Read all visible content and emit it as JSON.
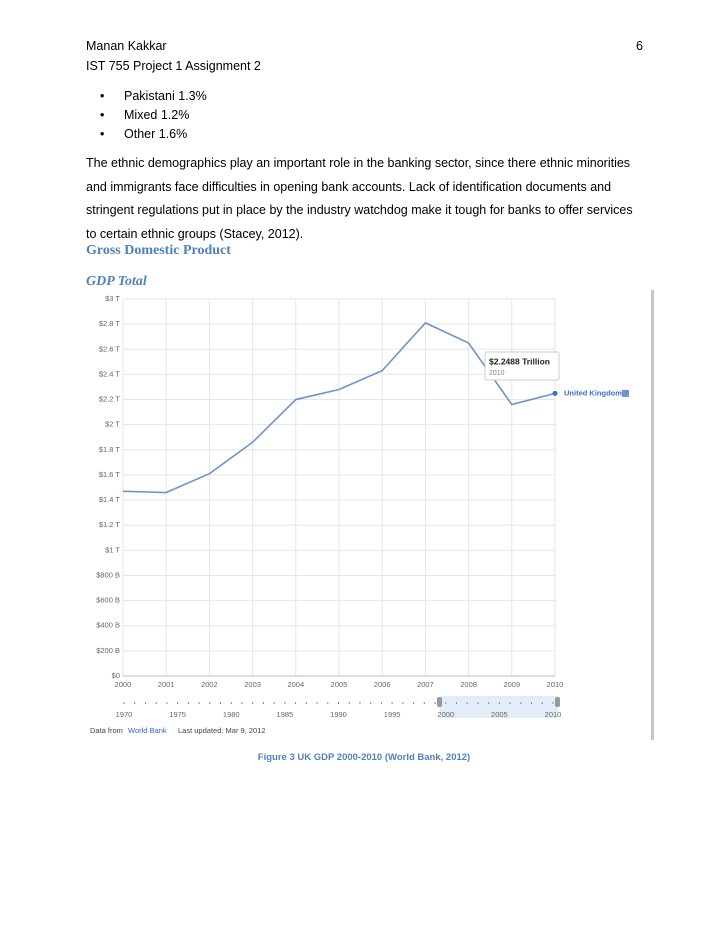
{
  "header": {
    "author": "Manan Kakkar",
    "page_number": "6",
    "course": "IST 755 Project 1 Assignment 2"
  },
  "bullets": [
    "Pakistani 1.3%",
    "Mixed 1.2%",
    "Other 1.6%"
  ],
  "paragraph": "The ethnic demographics play an important role in the banking sector, since there ethnic minorities and immigrants face difficulties in opening bank accounts. Lack of identification documents and stringent regulations put in place by the industry watchdog make it tough for banks to offer services to certain ethnic groups (Stacey, 2012).",
  "heading": "Gross Domestic Product",
  "subheading": "GDP Total",
  "chart_data": {
    "type": "line",
    "x": [
      2000,
      2001,
      2002,
      2003,
      2004,
      2005,
      2006,
      2007,
      2008,
      2009,
      2010
    ],
    "series": [
      {
        "name": "United Kingdom",
        "color": "#6f93cc",
        "values": [
          1.47,
          1.46,
          1.61,
          1.86,
          2.2,
          2.28,
          2.43,
          2.81,
          2.65,
          2.16,
          2.2488
        ]
      }
    ],
    "xlim": [
      2000,
      2010
    ],
    "xticks": [
      2000,
      2001,
      2002,
      2003,
      2004,
      2005,
      2006,
      2007,
      2008,
      2009,
      2010
    ],
    "ylim": [
      0,
      3
    ],
    "yticks": [
      {
        "value": 0,
        "label": "$0"
      },
      {
        "value": 0.2,
        "label": "$200 B"
      },
      {
        "value": 0.4,
        "label": "$400 B"
      },
      {
        "value": 0.6,
        "label": "$600 B"
      },
      {
        "value": 0.8,
        "label": "$800 B"
      },
      {
        "value": 1,
        "label": "$1 T"
      },
      {
        "value": 1.2,
        "label": "$1.2 T"
      },
      {
        "value": 1.4,
        "label": "$1.4 T"
      },
      {
        "value": 1.6,
        "label": "$1.6 T"
      },
      {
        "value": 1.8,
        "label": "$1.8 T"
      },
      {
        "value": 2,
        "label": "$2 T"
      },
      {
        "value": 2.2,
        "label": "$2.2 T"
      },
      {
        "value": 2.4,
        "label": "$2.4 T"
      },
      {
        "value": 2.6,
        "label": "$2.6 T"
      },
      {
        "value": 2.8,
        "label": "$2.8 T"
      },
      {
        "value": 3,
        "label": "$3 T"
      }
    ],
    "grid": true,
    "tooltip": {
      "label": "$2.2488 Trillion",
      "year": "2010"
    },
    "timeline": {
      "labels": [
        "1970",
        "1975",
        "1980",
        "1985",
        "1990",
        "1995",
        "2000",
        "2005",
        "2010"
      ]
    },
    "source_prefix": "Data from",
    "source": "World Bank",
    "updated": "Last updated: Mar 9, 2012"
  },
  "caption": "Figure 3 UK GDP 2000-2010 (World Bank, 2012)"
}
